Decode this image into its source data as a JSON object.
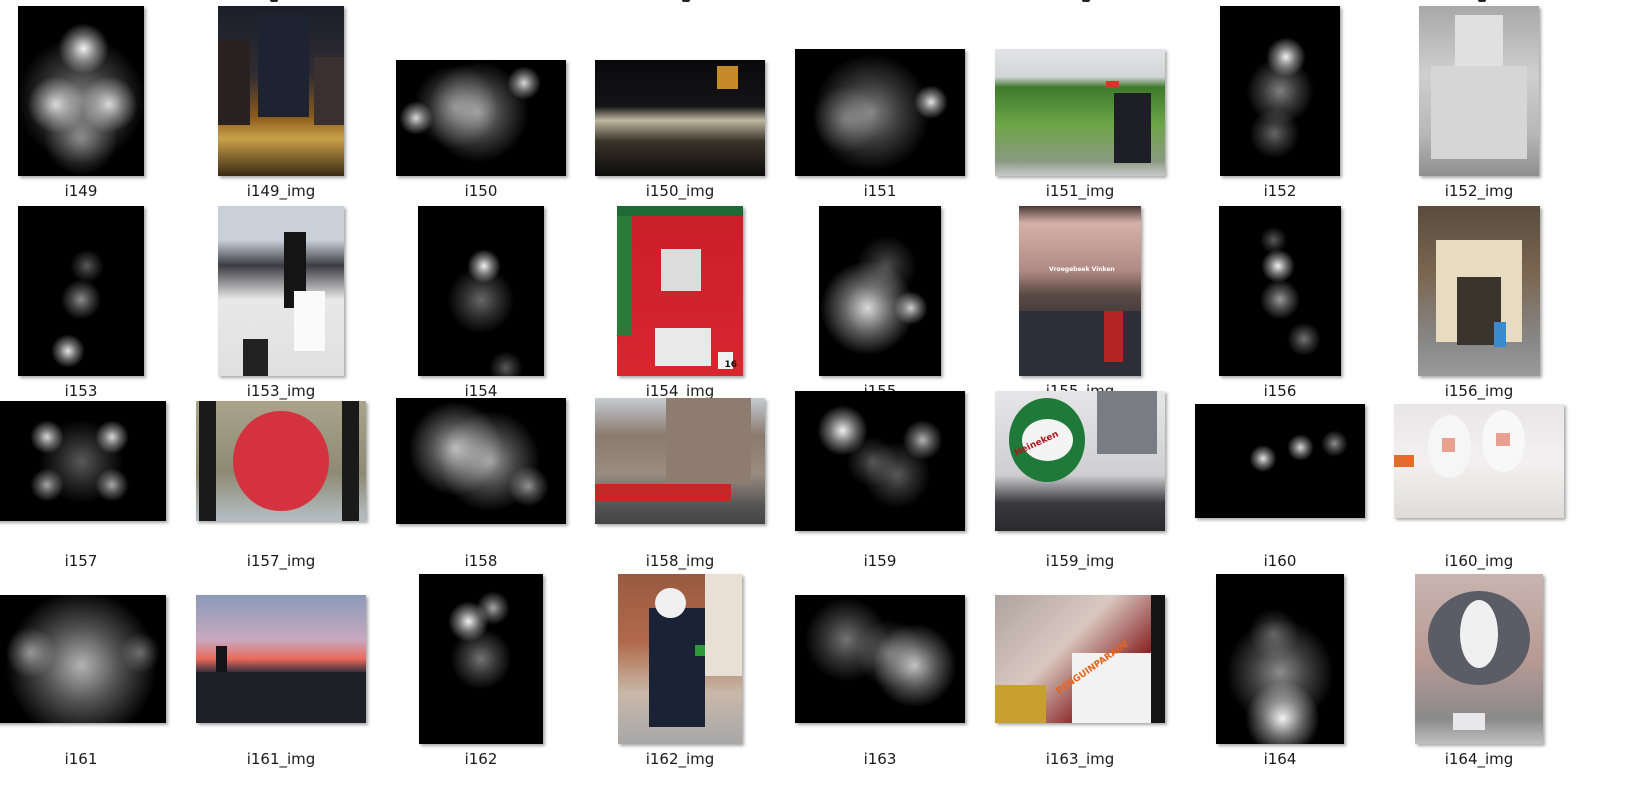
{
  "tiles": [
    {
      "label": "i149",
      "type": "saliency",
      "w": 126,
      "h": 170,
      "blobs": [
        [
          0.52,
          0.25,
          0.15,
          0.95
        ],
        [
          0.3,
          0.58,
          0.17,
          0.8
        ],
        [
          0.72,
          0.58,
          0.17,
          0.8
        ],
        [
          0.5,
          0.55,
          0.38,
          0.5
        ],
        [
          0.5,
          0.78,
          0.22,
          0.45
        ]
      ]
    },
    {
      "label": "i149_img",
      "type": "photo",
      "w": 126,
      "h": 170,
      "bg": "linear-gradient(180deg,#1c1e2a 0%,#2f2c33 40%,#8a5a1c 65%,#caa04a 78%,#3a2a14 100%)",
      "shapes": [
        {
          "l": 0.32,
          "t": 0.05,
          "w": 0.4,
          "h": 0.6,
          "c": "#1d2330"
        },
        {
          "l": 0.0,
          "t": 0.2,
          "w": 0.25,
          "h": 0.5,
          "c": "#2a2222"
        },
        {
          "l": 0.76,
          "t": 0.3,
          "w": 0.24,
          "h": 0.4,
          "c": "#3a3030"
        }
      ]
    },
    {
      "label": "i150",
      "type": "saliency",
      "w": 170,
      "h": 116,
      "blobs": [
        [
          0.12,
          0.5,
          0.1,
          0.85
        ],
        [
          0.48,
          0.45,
          0.3,
          0.55
        ],
        [
          0.75,
          0.2,
          0.1,
          0.85
        ],
        [
          0.35,
          0.4,
          0.25,
          0.45
        ]
      ]
    },
    {
      "label": "i150_img",
      "type": "photo",
      "w": 170,
      "h": 116,
      "bg": "linear-gradient(180deg,#0a0a0c 0%,#141416 40%,#bfb7a0 52%,#3a342a 70%,#0c0c0c 100%)",
      "shapes": [
        {
          "l": 0.72,
          "t": 0.05,
          "w": 0.12,
          "h": 0.2,
          "c": "#c68a2a"
        }
      ]
    },
    {
      "label": "i151",
      "type": "saliency",
      "w": 170,
      "h": 127,
      "blobs": [
        [
          0.45,
          0.5,
          0.35,
          0.5
        ],
        [
          0.8,
          0.42,
          0.1,
          0.9
        ],
        [
          0.3,
          0.55,
          0.2,
          0.35
        ]
      ]
    },
    {
      "label": "i151_img",
      "type": "photo",
      "w": 170,
      "h": 127,
      "bg": "linear-gradient(180deg,#e4e4e6 0%,#d2d4d6 22%,#3f7a2c 30%,#6da548 60%,#8a9a82 88%,#c8c8c8 100%)",
      "shapes": [
        {
          "l": 0.7,
          "t": 0.35,
          "w": 0.22,
          "h": 0.55,
          "c": "#1e1e26"
        },
        {
          "l": 0.65,
          "t": 0.25,
          "w": 0.08,
          "h": 0.06,
          "c": "#d8342a"
        }
      ]
    },
    {
      "label": "i152",
      "type": "saliency",
      "w": 120,
      "h": 170,
      "blobs": [
        [
          0.55,
          0.3,
          0.12,
          0.95
        ],
        [
          0.5,
          0.5,
          0.2,
          0.5
        ],
        [
          0.45,
          0.75,
          0.15,
          0.4
        ]
      ]
    },
    {
      "label": "i152_img",
      "type": "photo",
      "w": 120,
      "h": 170,
      "bg": "linear-gradient(180deg,#a8a8a8 0%,#cfcfcf 40%,#b8b8b8 75%,#8e8e8e 100%)",
      "shapes": [
        {
          "l": 0.3,
          "t": 0.05,
          "w": 0.4,
          "h": 0.3,
          "c": "#e0e0e0"
        },
        {
          "l": 0.1,
          "t": 0.35,
          "w": 0.8,
          "h": 0.55,
          "c": "#d6d6d6"
        }
      ]
    },
    {
      "label": "i153",
      "type": "saliency",
      "w": 126,
      "h": 170,
      "blobs": [
        [
          0.4,
          0.85,
          0.1,
          0.9
        ],
        [
          0.5,
          0.55,
          0.12,
          0.55
        ],
        [
          0.55,
          0.35,
          0.1,
          0.35
        ]
      ]
    },
    {
      "label": "i153_img",
      "type": "photo",
      "w": 126,
      "h": 170,
      "bg": "linear-gradient(180deg,#c9d0da 0%,#c9d0da 20%,#3c3c42 35%,#e8e8e8 55%,#e0e0e0 100%)",
      "shapes": [
        {
          "l": 0.52,
          "t": 0.15,
          "w": 0.18,
          "h": 0.45,
          "c": "#141414"
        },
        {
          "l": 0.6,
          "t": 0.5,
          "w": 0.25,
          "h": 0.35,
          "c": "#fafafa"
        },
        {
          "l": 0.2,
          "t": 0.78,
          "w": 0.2,
          "h": 0.22,
          "c": "#222"
        }
      ]
    },
    {
      "label": "i154",
      "type": "saliency",
      "w": 126,
      "h": 170,
      "blobs": [
        [
          0.52,
          0.35,
          0.1,
          0.95
        ],
        [
          0.5,
          0.55,
          0.2,
          0.4
        ],
        [
          0.7,
          0.95,
          0.1,
          0.35
        ]
      ]
    },
    {
      "label": "i154_img",
      "type": "photo",
      "w": 126,
      "h": 170,
      "bg": "linear-gradient(180deg,#c81f2a 0%,#d8262e 100%)",
      "shapes": [
        {
          "l": 0.0,
          "t": 0.0,
          "w": 1.0,
          "h": 0.06,
          "c": "#1d6a34"
        },
        {
          "l": 0.0,
          "t": 0.06,
          "w": 0.12,
          "h": 0.7,
          "c": "#2a7a3a"
        },
        {
          "l": 0.35,
          "t": 0.25,
          "w": 0.32,
          "h": 0.25,
          "c": "#dcdcdc"
        },
        {
          "l": 0.3,
          "t": 0.72,
          "w": 0.45,
          "h": 0.22,
          "c": "#e9e9e9"
        },
        {
          "l": 0.8,
          "t": 0.86,
          "w": 0.12,
          "h": 0.1,
          "c": "#f2f2f2"
        }
      ]
    },
    {
      "label": "i154_img_tag",
      "text": "16"
    },
    {
      "label": "i155",
      "type": "saliency",
      "w": 122,
      "h": 170,
      "blobs": [
        [
          0.4,
          0.6,
          0.28,
          0.85
        ],
        [
          0.75,
          0.6,
          0.1,
          0.8
        ],
        [
          0.55,
          0.35,
          0.18,
          0.3
        ]
      ]
    },
    {
      "label": "i155_img",
      "type": "photo",
      "w": 122,
      "h": 170,
      "bg": "linear-gradient(180deg,#4a3a38 0%,#d6b0a8 10%,#b08a84 38%,#5a4a44 52%,#2a2a30 80%,#1a1a20 100%)",
      "shapes": [
        {
          "l": 0.0,
          "t": 0.62,
          "w": 1.0,
          "h": 0.38,
          "c": "#2c2e38"
        },
        {
          "l": 0.7,
          "t": 0.62,
          "w": 0.15,
          "h": 0.3,
          "c": "#b42424"
        }
      ]
    },
    {
      "label": "i155_img_tag",
      "text": "Vroegebeek Vinken"
    },
    {
      "label": "i156",
      "type": "saliency",
      "w": 122,
      "h": 170,
      "blobs": [
        [
          0.48,
          0.35,
          0.1,
          0.95
        ],
        [
          0.5,
          0.55,
          0.12,
          0.6
        ],
        [
          0.7,
          0.78,
          0.1,
          0.45
        ],
        [
          0.45,
          0.2,
          0.08,
          0.35
        ]
      ]
    },
    {
      "label": "i156_img",
      "type": "photo",
      "w": 122,
      "h": 170,
      "bg": "linear-gradient(180deg,#5a4c3e 0%,#7a6650 40%,#888888 80%,#9a9a9a 100%)",
      "shapes": [
        {
          "l": 0.15,
          "t": 0.2,
          "w": 0.7,
          "h": 0.6,
          "c": "#e8dcc0"
        },
        {
          "l": 0.32,
          "t": 0.42,
          "w": 0.36,
          "h": 0.4,
          "c": "#3a342c"
        },
        {
          "l": 0.62,
          "t": 0.68,
          "w": 0.1,
          "h": 0.15,
          "c": "#3a8ad0"
        }
      ]
    },
    {
      "label": "i157",
      "type": "saliency",
      "w": 170,
      "h": 120,
      "blobs": [
        [
          0.3,
          0.3,
          0.1,
          0.85
        ],
        [
          0.68,
          0.3,
          0.1,
          0.85
        ],
        [
          0.3,
          0.7,
          0.1,
          0.65
        ],
        [
          0.68,
          0.7,
          0.1,
          0.65
        ],
        [
          0.5,
          0.5,
          0.25,
          0.35
        ]
      ]
    },
    {
      "label": "i157_img",
      "type": "photo",
      "w": 170,
      "h": 120,
      "bg": "linear-gradient(180deg,#a9a48a 0%,#8e8a74 60%,#b5c0c5 100%)",
      "shapes": [
        {
          "l": 0.02,
          "t": 0.0,
          "w": 0.1,
          "h": 1.0,
          "c": "#1a1a1a"
        },
        {
          "l": 0.86,
          "t": 0.0,
          "w": 0.1,
          "h": 1.0,
          "c": "#1a1a1a"
        },
        {
          "l": 0.22,
          "t": 0.08,
          "w": 0.56,
          "h": 0.84,
          "c": "#d4323e",
          "round": true
        }
      ]
    },
    {
      "label": "i158",
      "type": "saliency",
      "w": 170,
      "h": 126,
      "blobs": [
        [
          0.35,
          0.4,
          0.28,
          0.7
        ],
        [
          0.55,
          0.5,
          0.3,
          0.6
        ],
        [
          0.78,
          0.7,
          0.12,
          0.55
        ]
      ]
    },
    {
      "label": "i158_img",
      "type": "photo",
      "w": 170,
      "h": 126,
      "bg": "linear-gradient(180deg,#c6ccd2 0%,#8a7a6e 30%,#9a8c80 60%,#555555 85%,#444 100%)",
      "shapes": [
        {
          "l": 0.0,
          "t": 0.68,
          "w": 0.8,
          "h": 0.14,
          "c": "#c62828"
        },
        {
          "l": 0.42,
          "t": 0.0,
          "w": 0.5,
          "h": 0.68,
          "c": "#8e7c70"
        }
      ]
    },
    {
      "label": "i159",
      "type": "saliency",
      "w": 170,
      "h": 140,
      "blobs": [
        [
          0.28,
          0.28,
          0.15,
          0.95
        ],
        [
          0.75,
          0.35,
          0.12,
          0.7
        ],
        [
          0.6,
          0.6,
          0.2,
          0.35
        ],
        [
          0.45,
          0.5,
          0.15,
          0.3
        ]
      ]
    },
    {
      "label": "i159_img",
      "type": "photo",
      "w": 170,
      "h": 140,
      "bg": "linear-gradient(180deg,#e6e6e8 0%,#cfcfd2 60%,#3a3a3e 80%,#2a2a2e 100%)",
      "shapes": [
        {
          "l": 0.08,
          "t": 0.05,
          "w": 0.45,
          "h": 0.6,
          "c": "#1f7a3a",
          "round": true
        },
        {
          "l": 0.16,
          "t": 0.2,
          "w": 0.3,
          "h": 0.3,
          "c": "#f4f4f4",
          "round": true
        },
        {
          "l": 0.6,
          "t": 0.0,
          "w": 0.35,
          "h": 0.45,
          "c": "#7a7c84"
        }
      ]
    },
    {
      "label": "i159_img_tag",
      "text": "Heineken"
    },
    {
      "label": "i160",
      "type": "saliency",
      "w": 170,
      "h": 114,
      "blobs": [
        [
          0.4,
          0.48,
          0.08,
          0.9
        ],
        [
          0.62,
          0.38,
          0.08,
          0.85
        ],
        [
          0.82,
          0.35,
          0.08,
          0.55
        ]
      ]
    },
    {
      "label": "i160_img",
      "type": "photo",
      "w": 170,
      "h": 114,
      "bg": "linear-gradient(180deg,#e8e6e6 0%,#f2f0f0 50%,#e0dcdc 100%)",
      "shapes": [
        {
          "l": 0.2,
          "t": 0.1,
          "w": 0.25,
          "h": 0.55,
          "c": "#f6f6f6",
          "round": true
        },
        {
          "l": 0.52,
          "t": 0.05,
          "w": 0.25,
          "h": 0.55,
          "c": "#f8f8f8",
          "round": true
        },
        {
          "l": 0.28,
          "t": 0.3,
          "w": 0.08,
          "h": 0.12,
          "c": "#e8a090"
        },
        {
          "l": 0.6,
          "t": 0.25,
          "w": 0.08,
          "h": 0.12,
          "c": "#e8a090"
        },
        {
          "l": 0.0,
          "t": 0.45,
          "w": 0.12,
          "h": 0.1,
          "c": "#e86a2a"
        }
      ]
    },
    {
      "label": "i161",
      "type": "saliency",
      "w": 170,
      "h": 128,
      "blobs": [
        [
          0.5,
          0.55,
          0.45,
          0.7
        ],
        [
          0.2,
          0.45,
          0.15,
          0.5
        ],
        [
          0.85,
          0.45,
          0.12,
          0.35
        ]
      ]
    },
    {
      "label": "i161_img",
      "type": "photo",
      "w": 170,
      "h": 128,
      "bg": "linear-gradient(180deg,#8a9ab8 0%,#c8a8c0 35%,#e86a5a 50%,#3a3040 60%,#1c1c24 100%)",
      "shapes": [
        {
          "l": 0.12,
          "t": 0.4,
          "w": 0.06,
          "h": 0.3,
          "c": "#141418"
        },
        {
          "l": 0.0,
          "t": 0.6,
          "w": 1.0,
          "h": 0.4,
          "c": "#1e2028"
        }
      ]
    },
    {
      "label": "i162",
      "type": "saliency",
      "w": 124,
      "h": 170,
      "blobs": [
        [
          0.4,
          0.28,
          0.12,
          0.95
        ],
        [
          0.6,
          0.2,
          0.1,
          0.65
        ],
        [
          0.5,
          0.5,
          0.18,
          0.45
        ]
      ]
    },
    {
      "label": "i162_img",
      "type": "photo",
      "w": 124,
      "h": 170,
      "bg": "linear-gradient(180deg,#9a5a40 0%,#b06a4a 40%,#c8b8a8 70%,#a8a8a8 100%)",
      "shapes": [
        {
          "l": 0.25,
          "t": 0.2,
          "w": 0.45,
          "h": 0.7,
          "c": "#1a2236"
        },
        {
          "l": 0.3,
          "t": 0.08,
          "w": 0.25,
          "h": 0.18,
          "c": "#f0f0f0",
          "round": true
        },
        {
          "l": 0.62,
          "t": 0.42,
          "w": 0.12,
          "h": 0.06,
          "c": "#2a9a3a"
        },
        {
          "l": 0.7,
          "t": 0.0,
          "w": 0.3,
          "h": 0.6,
          "c": "#e8e0d4"
        }
      ]
    },
    {
      "label": "i163",
      "type": "saliency",
      "w": 170,
      "h": 128,
      "blobs": [
        [
          0.7,
          0.55,
          0.25,
          0.75
        ],
        [
          0.3,
          0.35,
          0.25,
          0.45
        ],
        [
          0.55,
          0.45,
          0.2,
          0.35
        ]
      ]
    },
    {
      "label": "i163_img",
      "type": "photo",
      "w": 170,
      "h": 128,
      "bg": "linear-gradient(135deg,#b0a4a0 0%,#d8c8c0 40%,#8a2a2a 70%,#2a1a1a 100%)",
      "shapes": [
        {
          "l": 0.45,
          "t": 0.45,
          "w": 0.5,
          "h": 0.55,
          "c": "#f2f2f2"
        },
        {
          "l": 0.0,
          "t": 0.7,
          "w": 0.3,
          "h": 0.3,
          "c": "#c8a030"
        },
        {
          "l": 0.92,
          "t": 0.0,
          "w": 0.08,
          "h": 1.0,
          "c": "#141414"
        }
      ]
    },
    {
      "label": "i163_img_tag",
      "text": "PENGUINPARADE"
    },
    {
      "label": "i164",
      "type": "saliency",
      "w": 128,
      "h": 170,
      "blobs": [
        [
          0.5,
          0.58,
          0.32,
          0.55
        ],
        [
          0.52,
          0.85,
          0.22,
          0.95
        ],
        [
          0.45,
          0.35,
          0.15,
          0.3
        ]
      ]
    },
    {
      "label": "i164_img",
      "type": "photo",
      "w": 128,
      "h": 170,
      "bg": "linear-gradient(180deg,#c8b4b0 0%,#b89a94 50%,#8a8a8a 85%,#c0c0c0 100%)",
      "shapes": [
        {
          "l": 0.1,
          "t": 0.1,
          "w": 0.8,
          "h": 0.55,
          "c": "#5a5c66",
          "round": true
        },
        {
          "l": 0.35,
          "t": 0.15,
          "w": 0.3,
          "h": 0.4,
          "c": "#f0f0f0",
          "round": true
        },
        {
          "l": 0.3,
          "t": 0.82,
          "w": 0.25,
          "h": 0.1,
          "c": "#e8e8ec"
        }
      ]
    }
  ]
}
